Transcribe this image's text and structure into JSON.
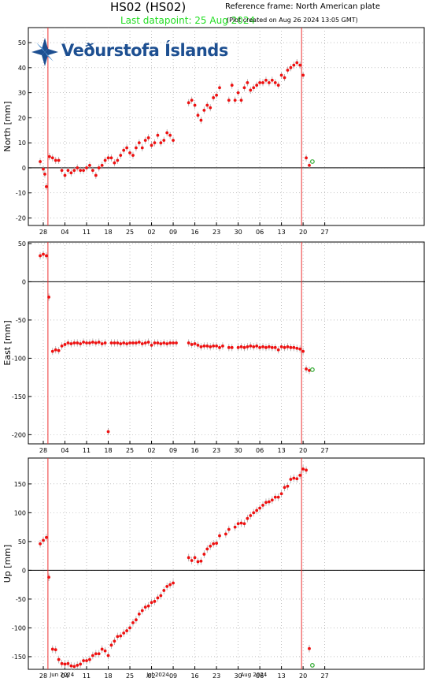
{
  "header": {
    "title": "HS02 (HS02)",
    "reference": "Reference frame: North American plate",
    "last_datapoint": "Last datapoint: 25 Aug 2024",
    "created": "(Plot created on Aug 26 2024 13:05 GMT)"
  },
  "logo": {
    "text": "Veðurstofa Íslands"
  },
  "colors": {
    "data": "#ee1111",
    "error_bar": "#aaaaaa",
    "event_line": "#ee3333",
    "latest": "#33aa33",
    "grid": "#999999"
  },
  "chart_data": [
    {
      "type": "scatter",
      "name": "north",
      "title": "",
      "ylabel": "North [mm]",
      "xlabel": "",
      "ylim": [
        -23,
        56
      ],
      "yticks": [
        -20,
        -10,
        0,
        10,
        20,
        30,
        40,
        50
      ],
      "grid": true,
      "x_is_day_index": true,
      "xlim": [
        -3,
        88
      ],
      "xticks": [
        0,
        7,
        14,
        21,
        28,
        35,
        42,
        49,
        56,
        63,
        70,
        77,
        84
      ],
      "xticklabels": [
        "28",
        "04",
        "11",
        "18",
        "25",
        "02",
        "09",
        "16",
        "23",
        "30",
        "06",
        "13",
        "20",
        "27"
      ],
      "event_days": [
        1.5,
        83.5
      ],
      "latest_point": [
        87,
        2.5
      ],
      "points": [
        [
          -1,
          2.5
        ],
        [
          0,
          -0.5
        ],
        [
          0.5,
          -2.5
        ],
        [
          1,
          -7.5
        ],
        [
          2,
          4.5
        ],
        [
          3,
          4
        ],
        [
          4,
          3
        ],
        [
          5,
          3
        ],
        [
          6,
          -1
        ],
        [
          7,
          -3
        ],
        [
          8,
          -1
        ],
        [
          9,
          -2
        ],
        [
          10,
          -1
        ],
        [
          11,
          0
        ],
        [
          12,
          -1
        ],
        [
          13,
          -1
        ],
        [
          14,
          0
        ],
        [
          15,
          1
        ],
        [
          16,
          -1
        ],
        [
          17,
          -3
        ],
        [
          18,
          0
        ],
        [
          19,
          1
        ],
        [
          20,
          3
        ],
        [
          21,
          4
        ],
        [
          22,
          4
        ],
        [
          23,
          2
        ],
        [
          24,
          3
        ],
        [
          25,
          5
        ],
        [
          26,
          7
        ],
        [
          27,
          8
        ],
        [
          28,
          6
        ],
        [
          29,
          5
        ],
        [
          30,
          8
        ],
        [
          31,
          10
        ],
        [
          32,
          8
        ],
        [
          33,
          11
        ],
        [
          34,
          12
        ],
        [
          35,
          9
        ],
        [
          36,
          10
        ],
        [
          37,
          13
        ],
        [
          38,
          10
        ],
        [
          39,
          11
        ],
        [
          40,
          14
        ],
        [
          41,
          13
        ],
        [
          42,
          11
        ],
        [
          47,
          26
        ],
        [
          48,
          27
        ],
        [
          49,
          25
        ],
        [
          50,
          21
        ],
        [
          51,
          19
        ],
        [
          52,
          23
        ],
        [
          53,
          25
        ],
        [
          54,
          24
        ],
        [
          55,
          28
        ],
        [
          56,
          29
        ],
        [
          57,
          32
        ],
        [
          60,
          27
        ],
        [
          61,
          33
        ],
        [
          62,
          27
        ],
        [
          63,
          30
        ],
        [
          64,
          27
        ],
        [
          65,
          32
        ],
        [
          66,
          34
        ],
        [
          67,
          31
        ],
        [
          68,
          32
        ],
        [
          69,
          33
        ],
        [
          70,
          34
        ],
        [
          71,
          34
        ],
        [
          72,
          35
        ],
        [
          73,
          34
        ],
        [
          74,
          35
        ],
        [
          75,
          34
        ],
        [
          76,
          33
        ],
        [
          77,
          37
        ],
        [
          78,
          36
        ],
        [
          79,
          39
        ],
        [
          80,
          40
        ],
        [
          81,
          41
        ],
        [
          82,
          42
        ],
        [
          83,
          41
        ],
        [
          84,
          37
        ],
        [
          85,
          4
        ],
        [
          86,
          1
        ]
      ]
    },
    {
      "type": "scatter",
      "name": "east",
      "title": "",
      "ylabel": "East [mm]",
      "xlabel": "",
      "ylim": [
        -212,
        52
      ],
      "yticks": [
        -200,
        -150,
        -100,
        -50,
        0,
        50
      ],
      "grid": true,
      "x_is_day_index": true,
      "xlim": [
        -3,
        88
      ],
      "xticks": [
        0,
        7,
        14,
        21,
        28,
        35,
        42,
        49,
        56,
        63,
        70,
        77,
        84
      ],
      "xticklabels": [
        "28",
        "04",
        "11",
        "18",
        "25",
        "02",
        "09",
        "16",
        "23",
        "30",
        "06",
        "13",
        "20",
        "27"
      ],
      "event_days": [
        1.5,
        83.5
      ],
      "latest_point": [
        87,
        -115
      ],
      "points": [
        [
          -1,
          34
        ],
        [
          0,
          36
        ],
        [
          1,
          34
        ],
        [
          1.8,
          -20
        ],
        [
          3,
          -91
        ],
        [
          4,
          -89
        ],
        [
          5,
          -90
        ],
        [
          6,
          -84
        ],
        [
          7,
          -82
        ],
        [
          8,
          -80
        ],
        [
          9,
          -81
        ],
        [
          10,
          -80
        ],
        [
          11,
          -80
        ],
        [
          12,
          -81
        ],
        [
          13,
          -79
        ],
        [
          14,
          -80
        ],
        [
          15,
          -80
        ],
        [
          16,
          -79
        ],
        [
          17,
          -80
        ],
        [
          18,
          -79
        ],
        [
          19,
          -81
        ],
        [
          20,
          -80
        ],
        [
          21,
          -196
        ],
        [
          22,
          -80
        ],
        [
          23,
          -80
        ],
        [
          24,
          -80
        ],
        [
          25,
          -81
        ],
        [
          26,
          -80
        ],
        [
          27,
          -81
        ],
        [
          28,
          -80
        ],
        [
          29,
          -80
        ],
        [
          30,
          -80
        ],
        [
          31,
          -79
        ],
        [
          32,
          -81
        ],
        [
          33,
          -80
        ],
        [
          34,
          -79
        ],
        [
          35,
          -83
        ],
        [
          36,
          -80
        ],
        [
          37,
          -80
        ],
        [
          38,
          -81
        ],
        [
          39,
          -80
        ],
        [
          40,
          -81
        ],
        [
          41,
          -80
        ],
        [
          42,
          -80
        ],
        [
          43,
          -80
        ],
        [
          47,
          -80
        ],
        [
          48,
          -82
        ],
        [
          49,
          -81
        ],
        [
          50,
          -83
        ],
        [
          51,
          -85
        ],
        [
          52,
          -84
        ],
        [
          53,
          -84
        ],
        [
          54,
          -85
        ],
        [
          55,
          -84
        ],
        [
          56,
          -84
        ],
        [
          57,
          -86
        ],
        [
          58,
          -84
        ],
        [
          60,
          -86
        ],
        [
          61,
          -86
        ],
        [
          63,
          -86
        ],
        [
          64,
          -85
        ],
        [
          65,
          -86
        ],
        [
          66,
          -85
        ],
        [
          67,
          -84
        ],
        [
          68,
          -85
        ],
        [
          69,
          -84
        ],
        [
          70,
          -86
        ],
        [
          71,
          -85
        ],
        [
          72,
          -86
        ],
        [
          73,
          -85
        ],
        [
          74,
          -86
        ],
        [
          75,
          -86
        ],
        [
          76,
          -89
        ],
        [
          77,
          -85
        ],
        [
          78,
          -86
        ],
        [
          79,
          -85
        ],
        [
          80,
          -86
        ],
        [
          81,
          -86
        ],
        [
          82,
          -87
        ],
        [
          83,
          -88
        ],
        [
          84,
          -91
        ],
        [
          85,
          -114
        ],
        [
          86,
          -116
        ]
      ]
    },
    {
      "type": "scatter",
      "name": "up",
      "title": "",
      "ylabel": "Up [mm]",
      "xlabel": "",
      "ylim": [
        -172,
        195
      ],
      "yticks": [
        -150,
        -100,
        -50,
        0,
        50,
        100,
        150
      ],
      "grid": true,
      "x_is_day_index": true,
      "xlim": [
        -3,
        88
      ],
      "xticks": [
        0,
        7,
        14,
        21,
        28,
        35,
        42,
        49,
        56,
        63,
        70,
        77,
        84
      ],
      "xticklabels": [
        "28",
        "04",
        "11",
        "18",
        "25",
        "02",
        "09",
        "16",
        "23",
        "30",
        "06",
        "13",
        "20",
        "27"
      ],
      "month_labels": [
        "Jun 2024",
        "Jul 2024",
        "Aug 2024"
      ],
      "event_days": [
        1.5,
        83.5
      ],
      "latest_point": [
        87,
        -165
      ],
      "points": [
        [
          -1,
          46
        ],
        [
          0,
          52
        ],
        [
          1,
          57
        ],
        [
          1.8,
          -12
        ],
        [
          3,
          -137
        ],
        [
          4,
          -138
        ],
        [
          5,
          -155
        ],
        [
          6,
          -162
        ],
        [
          7,
          -163
        ],
        [
          8,
          -162
        ],
        [
          9,
          -166
        ],
        [
          10,
          -167
        ],
        [
          11,
          -165
        ],
        [
          12,
          -163
        ],
        [
          13,
          -157
        ],
        [
          14,
          -157
        ],
        [
          15,
          -155
        ],
        [
          16,
          -148
        ],
        [
          17,
          -145
        ],
        [
          18,
          -145
        ],
        [
          19,
          -137
        ],
        [
          20,
          -140
        ],
        [
          21,
          -148
        ],
        [
          22,
          -130
        ],
        [
          23,
          -123
        ],
        [
          24,
          -115
        ],
        [
          25,
          -114
        ],
        [
          26,
          -109
        ],
        [
          27,
          -105
        ],
        [
          28,
          -100
        ],
        [
          29,
          -91
        ],
        [
          30,
          -86
        ],
        [
          31,
          -76
        ],
        [
          32,
          -70
        ],
        [
          33,
          -64
        ],
        [
          34,
          -62
        ],
        [
          35,
          -56
        ],
        [
          36,
          -54
        ],
        [
          37,
          -48
        ],
        [
          38,
          -44
        ],
        [
          39,
          -35
        ],
        [
          40,
          -28
        ],
        [
          41,
          -25
        ],
        [
          42,
          -22
        ],
        [
          47,
          22
        ],
        [
          48,
          17
        ],
        [
          49,
          22
        ],
        [
          50,
          15
        ],
        [
          51,
          16
        ],
        [
          52,
          28
        ],
        [
          53,
          37
        ],
        [
          54,
          42
        ],
        [
          55,
          46
        ],
        [
          56,
          47
        ],
        [
          57,
          60
        ],
        [
          59,
          63
        ],
        [
          60,
          71
        ],
        [
          62,
          75
        ],
        [
          63,
          81
        ],
        [
          64,
          82
        ],
        [
          65,
          81
        ],
        [
          66,
          90
        ],
        [
          67,
          95
        ],
        [
          68,
          100
        ],
        [
          69,
          104
        ],
        [
          70,
          108
        ],
        [
          71,
          113
        ],
        [
          72,
          118
        ],
        [
          73,
          119
        ],
        [
          74,
          122
        ],
        [
          75,
          127
        ],
        [
          76,
          127
        ],
        [
          77,
          133
        ],
        [
          78,
          144
        ],
        [
          79,
          146
        ],
        [
          80,
          158
        ],
        [
          81,
          160
        ],
        [
          82,
          159
        ],
        [
          83,
          165
        ],
        [
          84,
          176
        ],
        [
          85,
          174
        ],
        [
          86,
          -136
        ]
      ]
    }
  ]
}
